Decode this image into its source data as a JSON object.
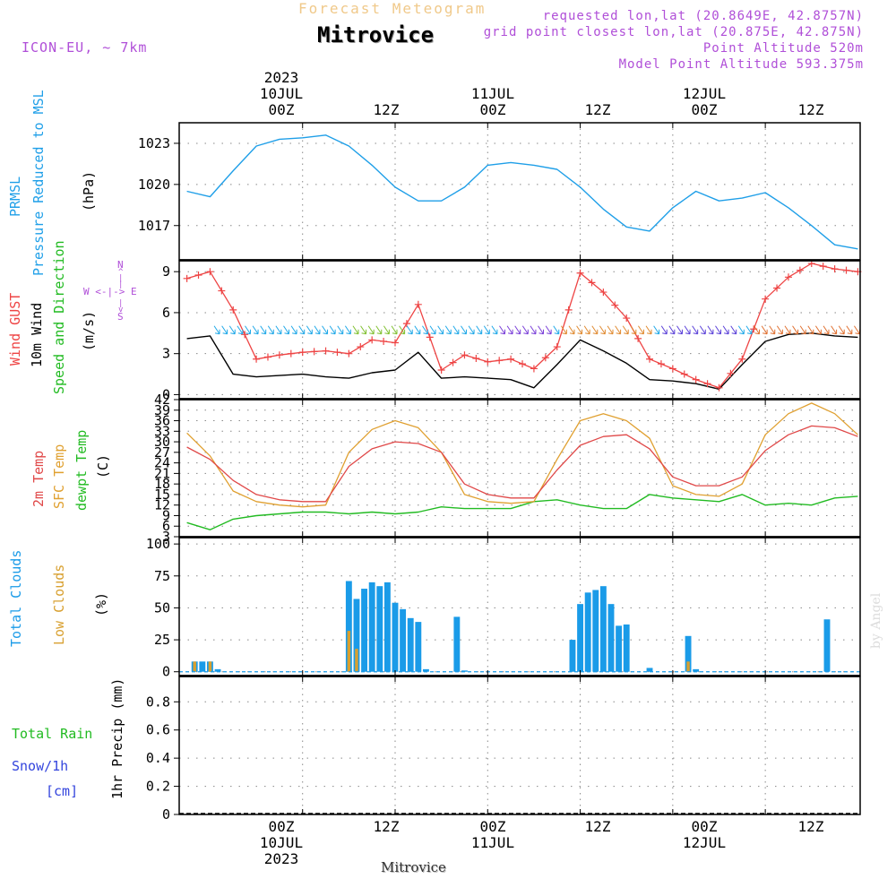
{
  "header": {
    "forecast_label": "Forecast Meteogram",
    "location": "Mitrovice",
    "model": "ICON-EU, ~ 7km",
    "requested": "requested lon,lat (20.8649E, 42.8757N)",
    "grid_point": "grid point closest lon,lat (20.875E, 42.875N)",
    "point_alt": "Point Altitude 520m",
    "model_alt": "Model Point Altitude 593.375m",
    "signature": "by Angel"
  },
  "time_axis": {
    "top_year": "2023",
    "ticks": [
      "00Z",
      "12Z",
      "00Z",
      "12Z",
      "00Z",
      "12Z"
    ],
    "dates": [
      "10JUL",
      "11JUL",
      "12JUL"
    ],
    "bottom_year": "2023",
    "bottom_location": "Mitrovice"
  },
  "labels": {
    "pressure_name": "PRMSL",
    "pressure_desc": "Pressure Reduced to MSL",
    "pressure_unit": "(hPa)",
    "gust_name": "Wind GUST",
    "wind_name": "10m Wind",
    "wind_desc": "Speed and Direction",
    "wind_unit": "(m/s)",
    "compass_n": "N",
    "compass_s": "S",
    "compass_we": "W <-|-> E",
    "temp_2m": "2m Temp",
    "temp_sfc": "SFC Temp",
    "temp_dew": "dewpt Temp",
    "temp_unit": "(C)",
    "cloud_total": "Total Clouds",
    "cloud_low": "Low Clouds",
    "cloud_unit": "(%)",
    "rain_total": "Total  Rain",
    "snow": "Snow/1h",
    "snow_unit": "[cm]",
    "precip_axis": "1hr Precip (mm)"
  },
  "colors": {
    "pressure": "#1f9fe8",
    "gust": "#ee4444",
    "wind": "#000000",
    "temp2m": "#e04848",
    "sfc": "#e0a030",
    "dew": "#22bb22",
    "clouds": "#1a9be8",
    "lowclouds": "#d8a030",
    "rain": "#22bb22",
    "snow": "#3344dd",
    "purple": "#b04fd8"
  },
  "chart_data": [
    {
      "type": "line",
      "title": "PRMSL Pressure Reduced to MSL",
      "ylabel": "(hPa)",
      "ylim": [
        1014.5,
        1024.5
      ],
      "yticks": [
        1017,
        1020,
        1023
      ],
      "x_hours": [
        -15,
        -12,
        -9,
        -6,
        -3,
        0,
        3,
        6,
        9,
        12,
        15,
        18,
        21,
        24,
        27,
        30,
        33,
        36,
        39,
        42,
        45,
        48,
        51,
        54,
        57,
        60,
        63,
        66,
        69,
        72
      ],
      "values": [
        1019.5,
        1019.1,
        1021.0,
        1022.8,
        1023.3,
        1023.4,
        1023.6,
        1022.8,
        1021.4,
        1019.8,
        1018.8,
        1018.8,
        1019.8,
        1021.4,
        1021.6,
        1021.4,
        1021.1,
        1019.8,
        1018.2,
        1016.9,
        1016.6,
        1018.3,
        1019.5,
        1018.8,
        1019.0,
        1019.4,
        1018.3,
        1017.0,
        1015.6,
        1015.3
      ]
    },
    {
      "type": "line",
      "title": "Wind GUST / 10m Wind Speed and Direction",
      "ylabel": "(m/s)",
      "ylim": [
        -0.3,
        9.8
      ],
      "yticks": [
        0,
        3,
        6,
        9
      ],
      "x_hours": [
        -15,
        -12,
        -9,
        -6,
        -3,
        0,
        3,
        6,
        9,
        12,
        15,
        18,
        21,
        24,
        27,
        30,
        33,
        36,
        39,
        42,
        45,
        48,
        51,
        54,
        57,
        60,
        63,
        66,
        69,
        72
      ],
      "series": [
        {
          "name": "Wind GUST",
          "values": [
            8.5,
            9.0,
            6.2,
            2.6,
            2.9,
            3.1,
            3.2,
            3.0,
            4.0,
            3.8,
            6.6,
            1.8,
            2.9,
            2.4,
            2.6,
            1.9,
            3.5,
            8.9,
            7.5,
            5.6,
            2.6,
            1.9,
            1.1,
            0.5,
            2.6,
            7.0,
            8.6,
            9.6,
            9.2,
            9.0
          ]
        },
        {
          "name": "10m Wind",
          "values": [
            4.1,
            4.3,
            1.5,
            1.3,
            1.4,
            1.5,
            1.3,
            1.2,
            1.6,
            1.8,
            3.1,
            1.2,
            1.3,
            1.2,
            1.1,
            0.5,
            2.2,
            4.0,
            3.2,
            2.3,
            1.1,
            1.0,
            0.8,
            0.4,
            2.2,
            3.9,
            4.4,
            4.5,
            4.3,
            4.2
          ]
        }
      ]
    },
    {
      "type": "line",
      "title": "2m Temp / SFC Temp / dewpt Temp",
      "ylabel": "(C)",
      "ylim": [
        3,
        42
      ],
      "yticks": [
        3,
        6,
        9,
        12,
        15,
        18,
        21,
        24,
        27,
        30,
        33,
        36,
        39,
        42
      ],
      "x_hours": [
        -15,
        -12,
        -9,
        -6,
        -3,
        0,
        3,
        6,
        9,
        12,
        15,
        18,
        21,
        24,
        27,
        30,
        33,
        36,
        39,
        42,
        45,
        48,
        51,
        54,
        57,
        60,
        63,
        66,
        69,
        72
      ],
      "series": [
        {
          "name": "2m Temp",
          "values": [
            28.5,
            25,
            19,
            15,
            13.5,
            13,
            13,
            23,
            28,
            30,
            29.5,
            27,
            18,
            15,
            14,
            14,
            22,
            29,
            31.5,
            32,
            28,
            20,
            17.5,
            17.5,
            20,
            27.5,
            32,
            34.5,
            34,
            31.5
          ]
        },
        {
          "name": "SFC Temp",
          "values": [
            32.5,
            26,
            16,
            13,
            12,
            11.5,
            12,
            27,
            33.5,
            36,
            34,
            27,
            15,
            13,
            12.5,
            13,
            25,
            36,
            38,
            36,
            31,
            17.5,
            15,
            14.5,
            18,
            32,
            38,
            41,
            38,
            32
          ]
        },
        {
          "name": "dewpt Temp",
          "values": [
            7,
            5,
            8,
            9,
            9.5,
            10,
            10,
            9.5,
            10,
            9.5,
            10,
            11.5,
            11,
            11,
            11,
            13,
            13.5,
            12,
            11,
            11,
            15,
            14,
            13.5,
            13,
            15,
            12,
            12.5,
            12,
            14,
            14.5
          ]
        }
      ]
    },
    {
      "type": "bar",
      "title": "Total Clouds / Low Clouds",
      "ylabel": "(%)",
      "ylim": [
        -3,
        105
      ],
      "yticks": [
        0,
        25,
        50,
        75,
        100
      ],
      "series": [
        {
          "name": "Total Clouds",
          "x_hours": [
            -14,
            -13,
            -12,
            -11,
            6,
            7,
            8,
            9,
            10,
            11,
            12,
            13,
            14,
            15,
            16,
            20,
            21,
            35,
            36,
            37,
            38,
            39,
            40,
            41,
            42,
            45,
            50,
            51,
            68
          ],
          "values": [
            8,
            8,
            8,
            2,
            71,
            57,
            65,
            70,
            67,
            70,
            54,
            49,
            42,
            39,
            2,
            43,
            1,
            25,
            53,
            62,
            64,
            67,
            53,
            36,
            37,
            3,
            28,
            2,
            41
          ]
        },
        {
          "name": "Low Clouds",
          "x_hours": [
            -14,
            -12,
            6,
            7,
            50
          ],
          "values": [
            8,
            8,
            32,
            18,
            8
          ]
        }
      ]
    },
    {
      "type": "bar",
      "title": "Total Rain / Snow",
      "ylabel": "1hr Precip (mm)",
      "ylim": [
        0,
        0.98
      ],
      "yticks": [
        0,
        0.2,
        0.4,
        0.6,
        0.8
      ],
      "series": [
        {
          "name": "Total Rain",
          "values": []
        },
        {
          "name": "Snow/1h",
          "values": []
        }
      ]
    }
  ]
}
